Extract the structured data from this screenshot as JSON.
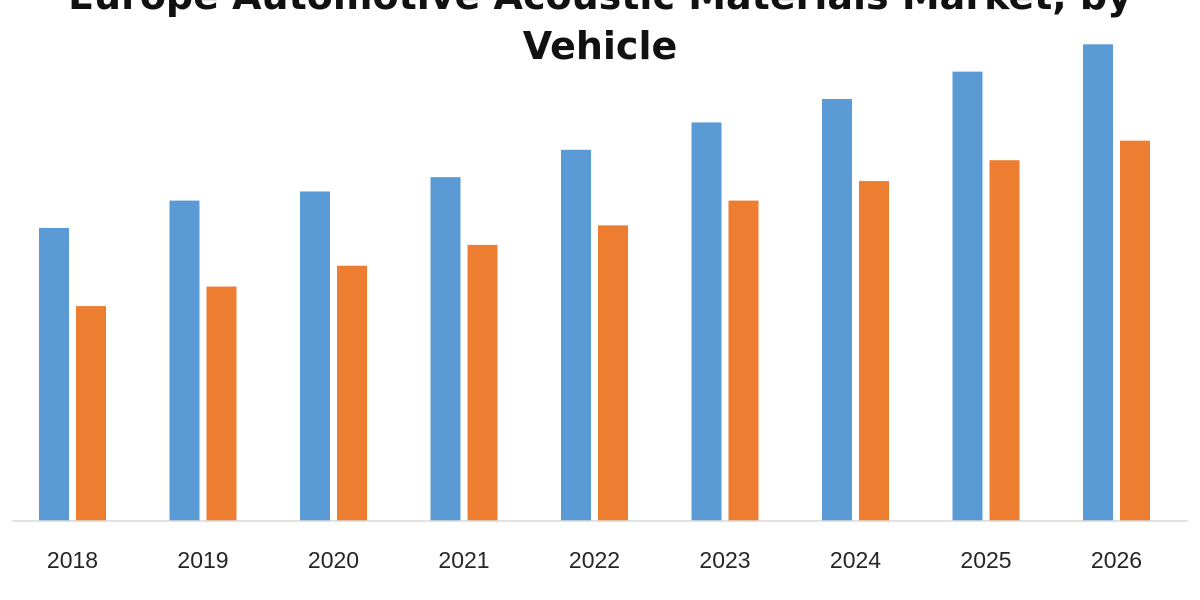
{
  "chart_data": {
    "type": "bar",
    "title_line1": "Europe Automotive Acoustic Materials Market, by",
    "title_line2": "Vehicle",
    "categories": [
      "2018",
      "2019",
      "2020",
      "2021",
      "2022",
      "2023",
      "2024",
      "2025",
      "2026"
    ],
    "series": [
      {
        "values": [
          225,
          246,
          253,
          264,
          285,
          306,
          324,
          345,
          366
        ]
      },
      {
        "values": [
          165,
          180,
          196,
          212,
          227,
          246,
          261,
          277,
          292
        ]
      }
    ],
    "colors": [
      "#5b9bd5",
      "#ed7d31"
    ],
    "ylim": [
      0,
      400
    ],
    "grid": false,
    "legend": "none",
    "xlabel": "",
    "ylabel": ""
  }
}
